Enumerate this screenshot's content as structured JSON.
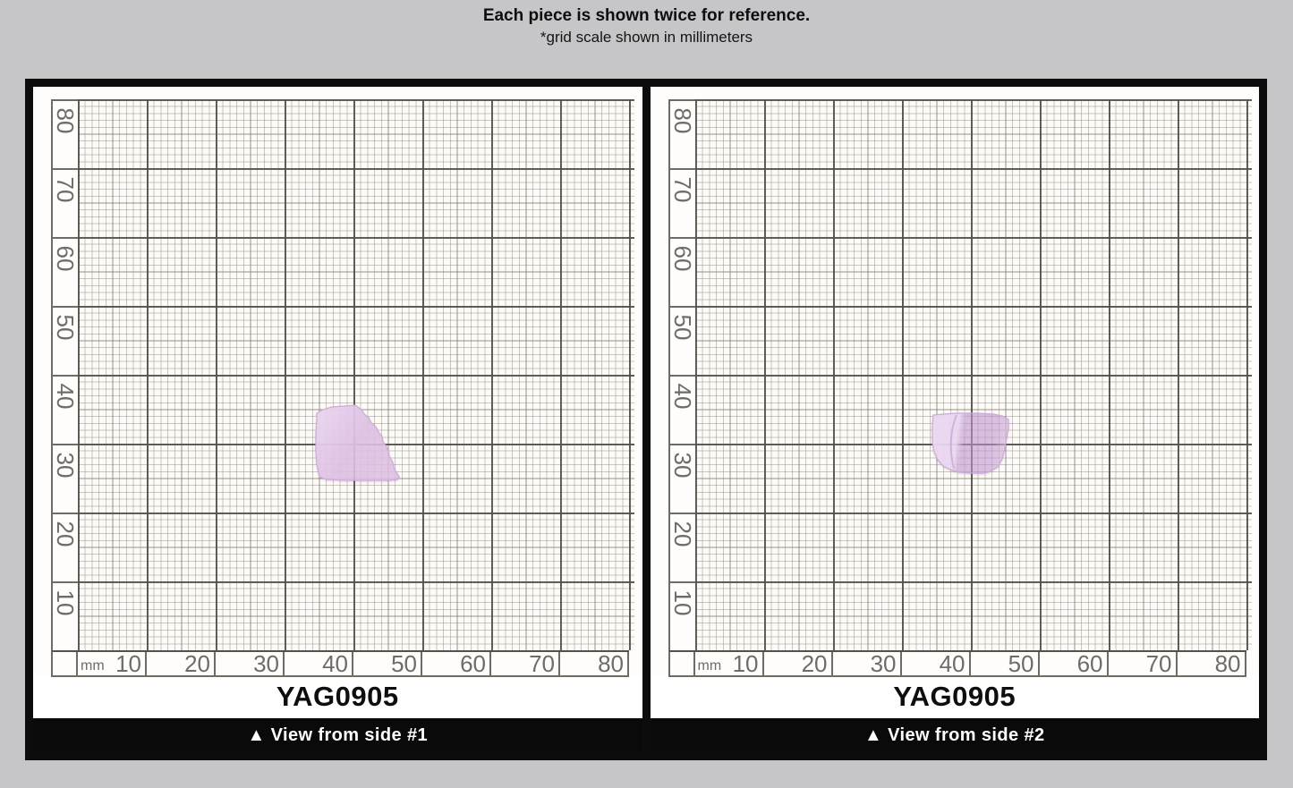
{
  "header": {
    "title": "Each piece is shown twice for reference.",
    "subtitle": "*grid scale shown in millimeters"
  },
  "panels": [
    {
      "label": "YAG0905",
      "caption": "▲ View from side #1",
      "ruler_unit": "mm",
      "y_ticks": [
        "80",
        "70",
        "60",
        "50",
        "40",
        "30",
        "20",
        "10"
      ],
      "x_ticks": [
        "10",
        "20",
        "30",
        "40",
        "50",
        "60",
        "70",
        "80"
      ]
    },
    {
      "label": "YAG0905",
      "caption": "▲ View from side #2",
      "ruler_unit": "mm",
      "y_ticks": [
        "80",
        "70",
        "60",
        "50",
        "40",
        "30",
        "20",
        "10"
      ],
      "x_ticks": [
        "10",
        "20",
        "30",
        "40",
        "50",
        "60",
        "70",
        "80"
      ]
    }
  ],
  "colors": {
    "background": "#c6c6c8",
    "paper": "#fcfbf8",
    "grid_heavy": "#55504a",
    "grid_light": "#8c857d",
    "ruler_text": "#6f6b66",
    "frame": "#0c0c0c",
    "caption_bg": "#0a0a0a",
    "caption_text": "#ffffff",
    "crystal_light": "#ecd9f2",
    "crystal_mid": "#e0c3e5",
    "crystal_dark": "#c79bd6",
    "crystal_edge": "#cfa9d8"
  }
}
